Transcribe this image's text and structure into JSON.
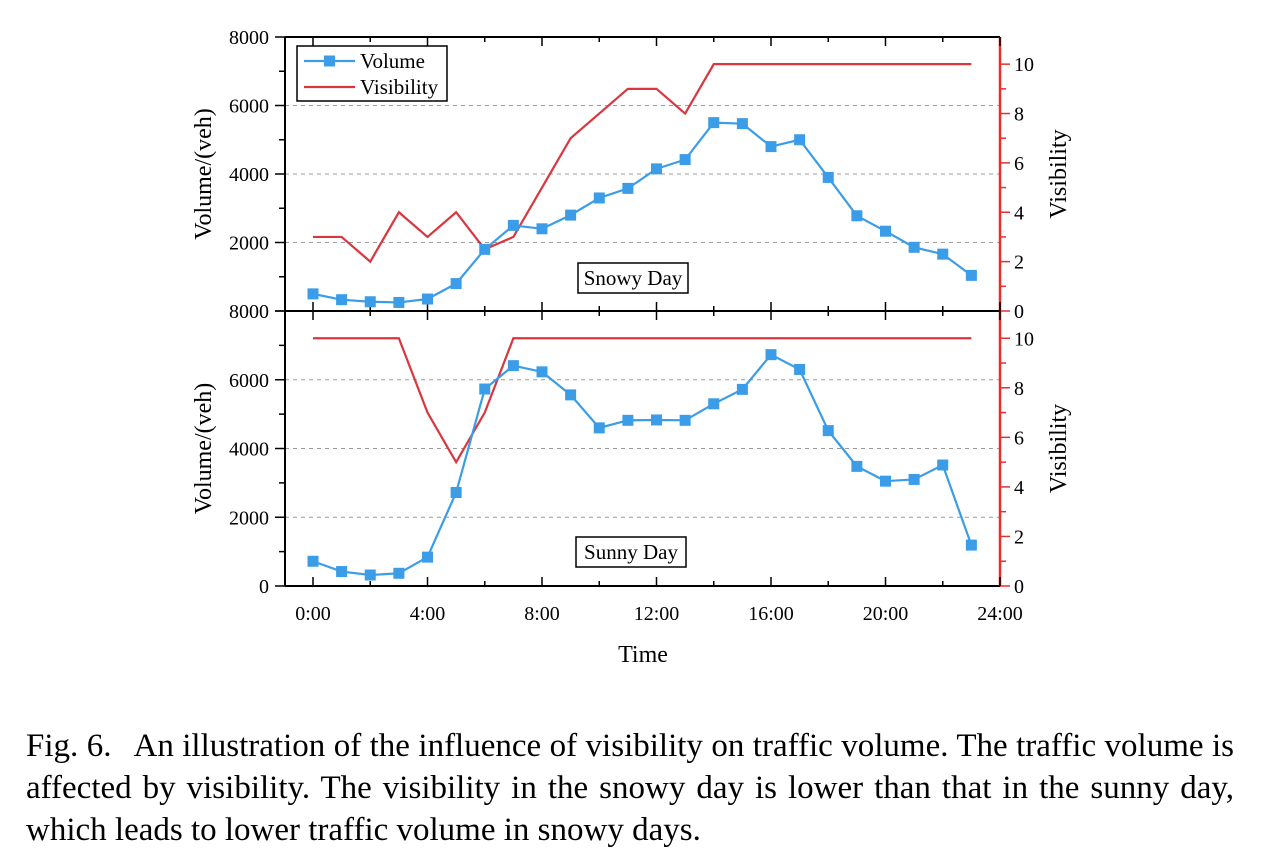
{
  "chart_data": [
    {
      "type": "line",
      "panel": "top",
      "annotation": "Snowy Day",
      "x": [
        "0:00",
        "1:00",
        "2:00",
        "3:00",
        "4:00",
        "5:00",
        "6:00",
        "7:00",
        "8:00",
        "9:00",
        "10:00",
        "11:00",
        "12:00",
        "13:00",
        "14:00",
        "15:00",
        "16:00",
        "17:00",
        "18:00",
        "19:00",
        "20:00",
        "21:00",
        "22:00",
        "23:00"
      ],
      "series": [
        {
          "name": "Volume",
          "axis": "left",
          "color": "#3b9ce8",
          "marker": "square",
          "values": [
            500,
            330,
            270,
            250,
            350,
            800,
            1800,
            2500,
            2400,
            2800,
            3300,
            3580,
            4150,
            4420,
            5500,
            5470,
            4800,
            5000,
            3900,
            2780,
            2330,
            1860,
            1660,
            1040
          ]
        },
        {
          "name": "Visibility",
          "axis": "right",
          "color": "#d9363e",
          "marker": "none",
          "values": [
            3,
            3,
            2,
            4,
            3,
            4,
            2.5,
            3,
            5,
            7,
            8,
            9,
            9,
            8,
            10,
            10,
            10,
            10,
            10,
            10,
            10,
            10,
            10,
            10
          ]
        }
      ],
      "ylabel": "Volume/(veh)",
      "y2label": "Visibility",
      "ylim": [
        0,
        8000
      ],
      "y2lim": [
        0,
        11.1
      ],
      "yticks": [
        "2000",
        "4000",
        "6000",
        "8000"
      ],
      "y2ticks": [
        "0",
        "2",
        "4",
        "6",
        "8",
        "10"
      ],
      "legend": {
        "placement": "top-left",
        "entries": [
          "Volume",
          "Visibility"
        ]
      },
      "grid": "dashed horizontal"
    },
    {
      "type": "line",
      "panel": "bottom",
      "annotation": "Sunny Day",
      "x": [
        "0:00",
        "1:00",
        "2:00",
        "3:00",
        "4:00",
        "5:00",
        "6:00",
        "7:00",
        "8:00",
        "9:00",
        "10:00",
        "11:00",
        "12:00",
        "13:00",
        "14:00",
        "15:00",
        "16:00",
        "17:00",
        "18:00",
        "19:00",
        "20:00",
        "21:00",
        "22:00",
        "23:00"
      ],
      "series": [
        {
          "name": "Volume",
          "axis": "left",
          "color": "#3b9ce8",
          "marker": "square",
          "values": [
            720,
            420,
            320,
            370,
            840,
            2720,
            5730,
            6410,
            6230,
            5560,
            4600,
            4820,
            4830,
            4820,
            5300,
            5720,
            6730,
            6300,
            4520,
            3480,
            3050,
            3100,
            3520,
            1190
          ]
        },
        {
          "name": "Visibility",
          "axis": "right",
          "color": "#d9363e",
          "marker": "none",
          "values": [
            10,
            10,
            10,
            10,
            7,
            5,
            7,
            10,
            10,
            10,
            10,
            10,
            10,
            10,
            10,
            10,
            10,
            10,
            10,
            10,
            10,
            10,
            10,
            10
          ]
        }
      ],
      "ylabel": "Volume/(veh)",
      "y2label": "Visibility",
      "ylim": [
        0,
        8000
      ],
      "y2lim": [
        0,
        11.1
      ],
      "yticks": [
        "0",
        "2000",
        "4000",
        "6000",
        "8000"
      ],
      "y2ticks": [
        "0",
        "2",
        "4",
        "6",
        "8",
        "10"
      ],
      "xticks": [
        "0:00",
        "4:00",
        "8:00",
        "12:00",
        "16:00",
        "20:00",
        "24:00"
      ],
      "xlabel": "Time",
      "grid": "dashed horizontal"
    }
  ],
  "caption": {
    "label": "Fig. 6.",
    "text": "An illustration of the influence of visibility on traffic volume. The traffic volume is affected by visibility. The visibility in the snowy day is lower than that in the sunny day, which leads to lower traffic volume in snowy days."
  }
}
